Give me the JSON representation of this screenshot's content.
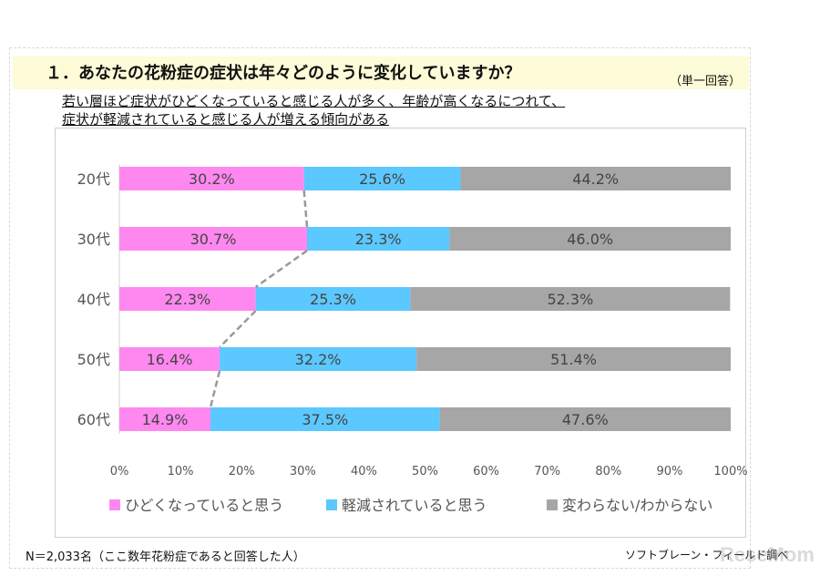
{
  "header": {
    "title": "１．あなたの花粉症の症状は年々どのように変化していますか？",
    "note": "（単一回答）",
    "subtitle_line1": "若い層ほど症状がひどくなっていると感じる人が多く、年齢が高くなるにつれて、",
    "subtitle_line2": "症状が軽減されていると感じる人が増える傾向がある"
  },
  "footer": {
    "sample_note": "N＝2,033名（ここ数年花粉症であると回答した人）",
    "credit": "ソフトブレーン・フィールド調べ",
    "watermark": "ReseMom"
  },
  "chart_data": {
    "type": "bar",
    "orientation": "horizontal",
    "stacked": true,
    "categories": [
      "20代",
      "30代",
      "40代",
      "50代",
      "60代"
    ],
    "series": [
      {
        "name": "ひどくなっていると思う",
        "color": "#ff88f0",
        "values": [
          30.2,
          30.7,
          22.3,
          16.4,
          14.9
        ],
        "labels": [
          "30.2%",
          "30.7%",
          "22.3%",
          "16.4%",
          "14.9%"
        ]
      },
      {
        "name": "軽減されていると思う",
        "color": "#5bc8ff",
        "values": [
          25.6,
          23.3,
          25.3,
          32.2,
          37.5
        ],
        "labels": [
          "25.6%",
          "23.3%",
          "25.3%",
          "32.2%",
          "37.5%"
        ]
      },
      {
        "name": "変わらない/わからない",
        "color": "#a6a6a6",
        "values": [
          44.2,
          46.0,
          52.3,
          51.4,
          47.6
        ],
        "labels": [
          "44.2%",
          "46.0%",
          "52.3%",
          "51.4%",
          "47.6%"
        ]
      }
    ],
    "x_ticks": [
      "0%",
      "10%",
      "20%",
      "30%",
      "40%",
      "50%",
      "60%",
      "70%",
      "80%",
      "90%",
      "100%"
    ],
    "xlim": [
      0,
      100
    ],
    "trend_line": "dashed line connecting ends of first series",
    "legend_position": "bottom",
    "grid": false
  }
}
